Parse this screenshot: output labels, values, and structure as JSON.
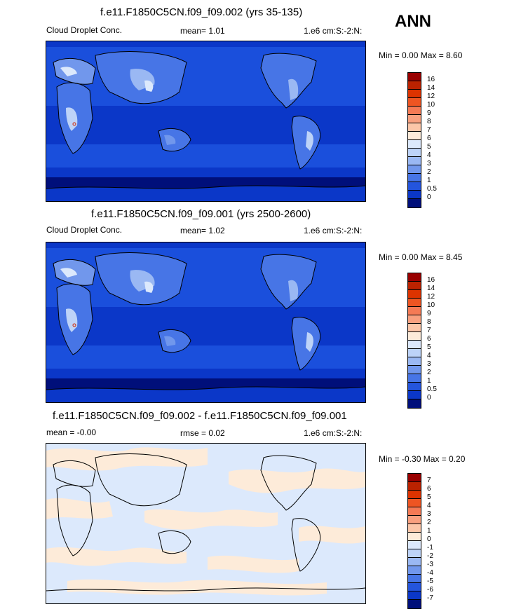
{
  "season": "ANN",
  "panels": [
    {
      "title": "f.e11.F1850C5CN.f09_f09.002 (yrs 35-135)",
      "left_label": "Cloud Droplet Conc.",
      "center_label": "mean=   1.01",
      "right_label": "1.e6 cm:S:-2:N:",
      "minmax": "Min =   0.00 Max =   8.60",
      "legend_labels": [
        "16",
        "14",
        "12",
        "10",
        "9",
        "8",
        "7",
        "6",
        "5",
        "4",
        "3",
        "2",
        "1",
        "0.5",
        "0"
      ]
    },
    {
      "title": "f.e11.F1850C5CN.f09_f09.001 (yrs 2500-2600)",
      "left_label": "Cloud Droplet Conc.",
      "center_label": "mean=   1.02",
      "right_label": "1.e6 cm:S:-2:N:",
      "minmax": "Min =   0.00 Max =   8.45",
      "legend_labels": [
        "16",
        "14",
        "12",
        "10",
        "9",
        "8",
        "7",
        "6",
        "5",
        "4",
        "3",
        "2",
        "1",
        "0.5",
        "0"
      ]
    },
    {
      "title": "f.e11.F1850C5CN.f09_f09.002 - f.e11.F1850C5CN.f09_f09.001",
      "left_label": "mean =  -0.00",
      "center_label": "rmse =   0.02",
      "right_label": "1.e6 cm:S:-2:N:",
      "minmax": "Min =  -0.30 Max =   0.20",
      "legend_labels": [
        "7",
        "6",
        "5",
        "4",
        "3",
        "2",
        "1",
        "0",
        "-1",
        "-2",
        "-3",
        "-4",
        "-5",
        "-6",
        "-7"
      ]
    }
  ],
  "colors": {
    "field_scale": [
      "#990000",
      "#bb2200",
      "#dd3300",
      "#ee5522",
      "#f57a55",
      "#f9a07f",
      "#fcc6a8",
      "#fdebd9",
      "#dce9fc",
      "#bdd3f8",
      "#9ab8f3",
      "#7197ec",
      "#4775e6",
      "#2455dd",
      "#0b37c8",
      "#000f7a"
    ],
    "diff_scale": [
      "#990000",
      "#bb2200",
      "#dd3300",
      "#ee5522",
      "#f57a55",
      "#f9a07f",
      "#fcc6a8",
      "#fdebd9",
      "#dce9fc",
      "#bdd3f8",
      "#9ab8f3",
      "#7197ec",
      "#4775e6",
      "#2455dd",
      "#0b37c8",
      "#000f7a"
    ]
  }
}
